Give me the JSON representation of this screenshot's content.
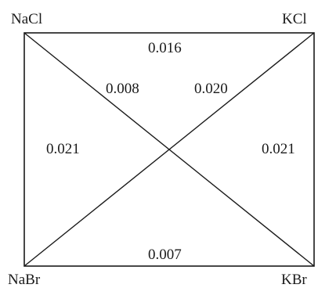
{
  "colors": {
    "line": "#1a1a1a",
    "text": "#1a1a1a",
    "background": "#ffffff"
  },
  "corners": {
    "top_left": "NaCl",
    "top_right": "KCl",
    "bottom_left": "NaBr",
    "bottom_right": "KBr"
  },
  "edges": {
    "top": "0.016",
    "bottom": "0.007",
    "left": "0.021",
    "right": "0.021"
  },
  "diagonals": {
    "nacl_kbr": "0.008",
    "kcl_nabr": "0.020"
  }
}
